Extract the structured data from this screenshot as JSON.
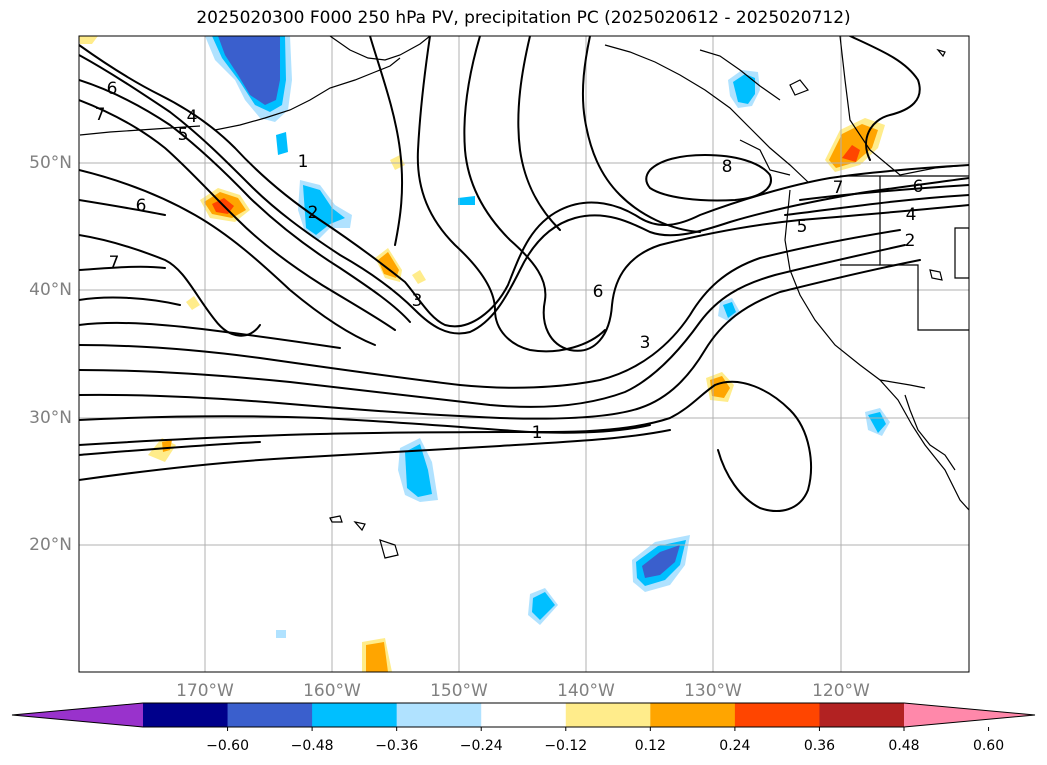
{
  "title": "2025020300 F000 250 hPa PV, precipitation PC (2025020612 - 2025020712)",
  "lat_labels": [
    "50°N",
    "40°N",
    "30°N",
    "20°N"
  ],
  "lon_labels": [
    "170°W",
    "160°W",
    "150°W",
    "140°W",
    "130°W",
    "120°W"
  ],
  "contour_labels": [
    "6",
    "7",
    "4",
    "5",
    "1",
    "2",
    "6",
    "7",
    "3",
    "8",
    "6",
    "3",
    "1",
    "6",
    "4",
    "5",
    "2",
    "7"
  ],
  "colorbar": {
    "ticks": [
      "−0.60",
      "−0.48",
      "−0.36",
      "−0.24",
      "−0.12",
      "0.12",
      "0.24",
      "0.36",
      "0.48",
      "0.60"
    ],
    "colors": [
      "#9932cc",
      "#00008b",
      "#3a5fcd",
      "#00bfff",
      "#b0e2ff",
      "#ffffff",
      "#ffec8b",
      "#ffa500",
      "#ff4500",
      "#b22222",
      "#ff88aa"
    ]
  }
}
